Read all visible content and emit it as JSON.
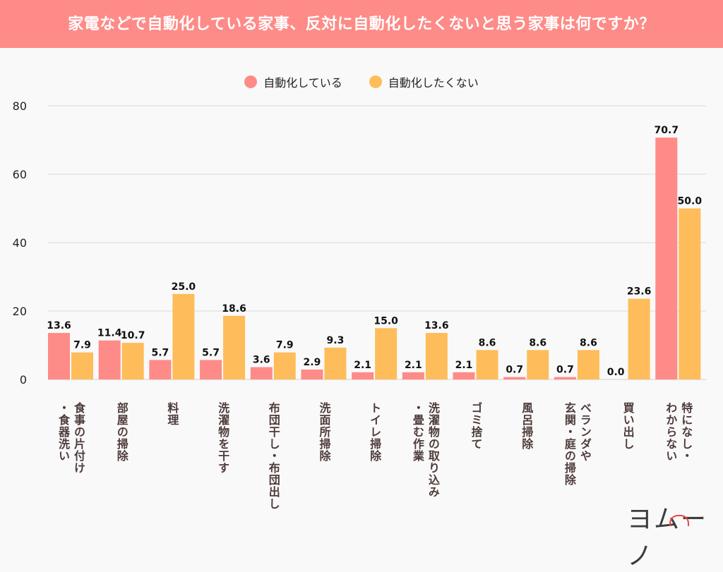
{
  "header": {
    "title": "家電などで自動化している家事、反対に自動化したくないと思う家事は何ですか？"
  },
  "logo": {
    "text": "ヨムーノ"
  },
  "chart_data": {
    "type": "bar",
    "title": "家電などで自動化している家事、反対に自動化したくないと思う家事は何ですか？",
    "xlabel": "",
    "ylabel": "",
    "ylim": [
      0,
      80
    ],
    "yticks": [
      0,
      20,
      40,
      60,
      80
    ],
    "grid": true,
    "legend_position": "top-center",
    "categories": [
      "食事の片付け・食器洗い",
      "部屋の掃除",
      "料理",
      "洗濯物を干す",
      "布団干し・布団出し",
      "洗面所掃除",
      "トイレ掃除",
      "洗濯物の取り込み・畳む作業",
      "ゴミ捨て",
      "風呂掃除",
      "ベランダや玄関・庭の掃除",
      "買い出し",
      "特になし・わからない"
    ],
    "category_lines": [
      [
        "食事の片付け",
        "・食器洗い"
      ],
      [
        "部屋の掃除"
      ],
      [
        "料理"
      ],
      [
        "洗濯物を干す"
      ],
      [
        "布団干し・布団出し"
      ],
      [
        "洗面所掃除"
      ],
      [
        "トイレ掃除"
      ],
      [
        "洗濯物の取り込み",
        "・畳む作業"
      ],
      [
        "ゴミ捨て"
      ],
      [
        "風呂掃除"
      ],
      [
        "ベランダや",
        "玄関・庭の掃除"
      ],
      [
        "買い出し"
      ],
      [
        "特になし・",
        "わからない"
      ]
    ],
    "series": [
      {
        "name": "自動化している",
        "color": "#fe8b87",
        "values": [
          13.6,
          11.4,
          5.7,
          5.7,
          3.6,
          2.9,
          2.1,
          2.1,
          2.1,
          0.7,
          0.7,
          0.0,
          70.7
        ]
      },
      {
        "name": "自動化したくない",
        "color": "#febd5a",
        "values": [
          7.9,
          10.7,
          25.0,
          18.6,
          7.9,
          9.3,
          15.0,
          13.6,
          8.6,
          8.6,
          8.6,
          23.6,
          50.0
        ]
      }
    ]
  }
}
